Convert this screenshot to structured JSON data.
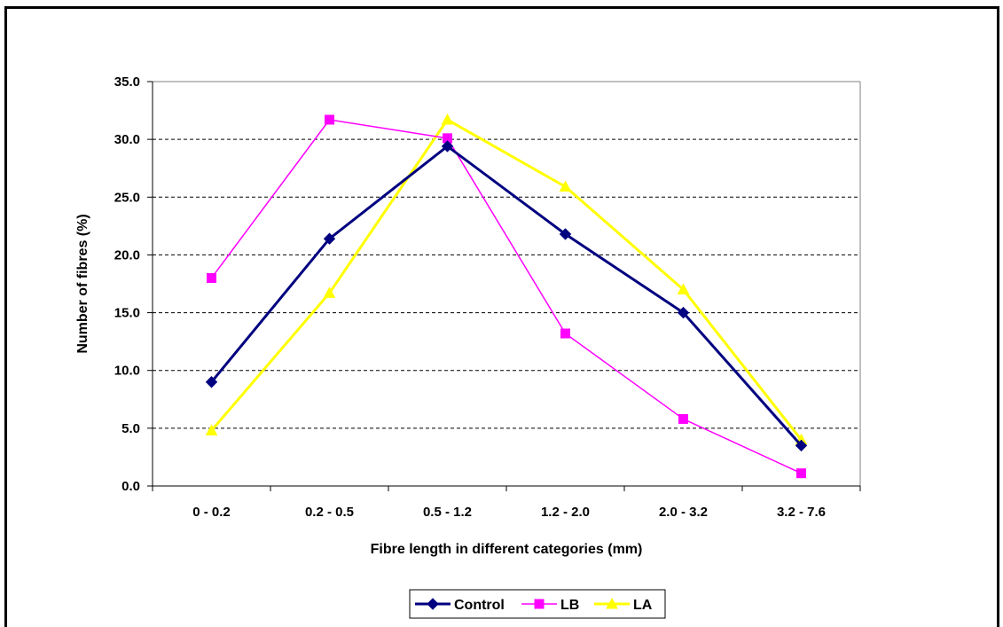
{
  "chart_data": {
    "type": "line",
    "title": "",
    "xlabel": "Fibre length in different categories (mm)",
    "ylabel": "Number of fibres (%)",
    "categories": [
      "0 - 0.2",
      "0.2 - 0.5",
      "0.5 - 1.2",
      "1.2 - 2.0",
      "2.0 - 3.2",
      "3.2 - 7.6"
    ],
    "ylim": [
      0,
      35
    ],
    "yticks": [
      "0.0",
      "5.0",
      "10.0",
      "15.0",
      "20.0",
      "25.0",
      "30.0",
      "35.0"
    ],
    "grid": "horizontal dashed",
    "legend": "bottom",
    "series": [
      {
        "name": "Control",
        "color": "#000080",
        "marker": "diamond",
        "values": [
          9.0,
          21.4,
          29.4,
          21.8,
          15.0,
          3.5
        ]
      },
      {
        "name": "LB",
        "color": "#ff00ff",
        "marker": "square",
        "values": [
          18.0,
          31.7,
          30.1,
          13.2,
          5.8,
          1.1
        ]
      },
      {
        "name": "LA",
        "color": "#ffff00",
        "marker": "triangle",
        "values": [
          4.8,
          16.7,
          31.7,
          25.9,
          17.0,
          4.0
        ]
      }
    ]
  }
}
